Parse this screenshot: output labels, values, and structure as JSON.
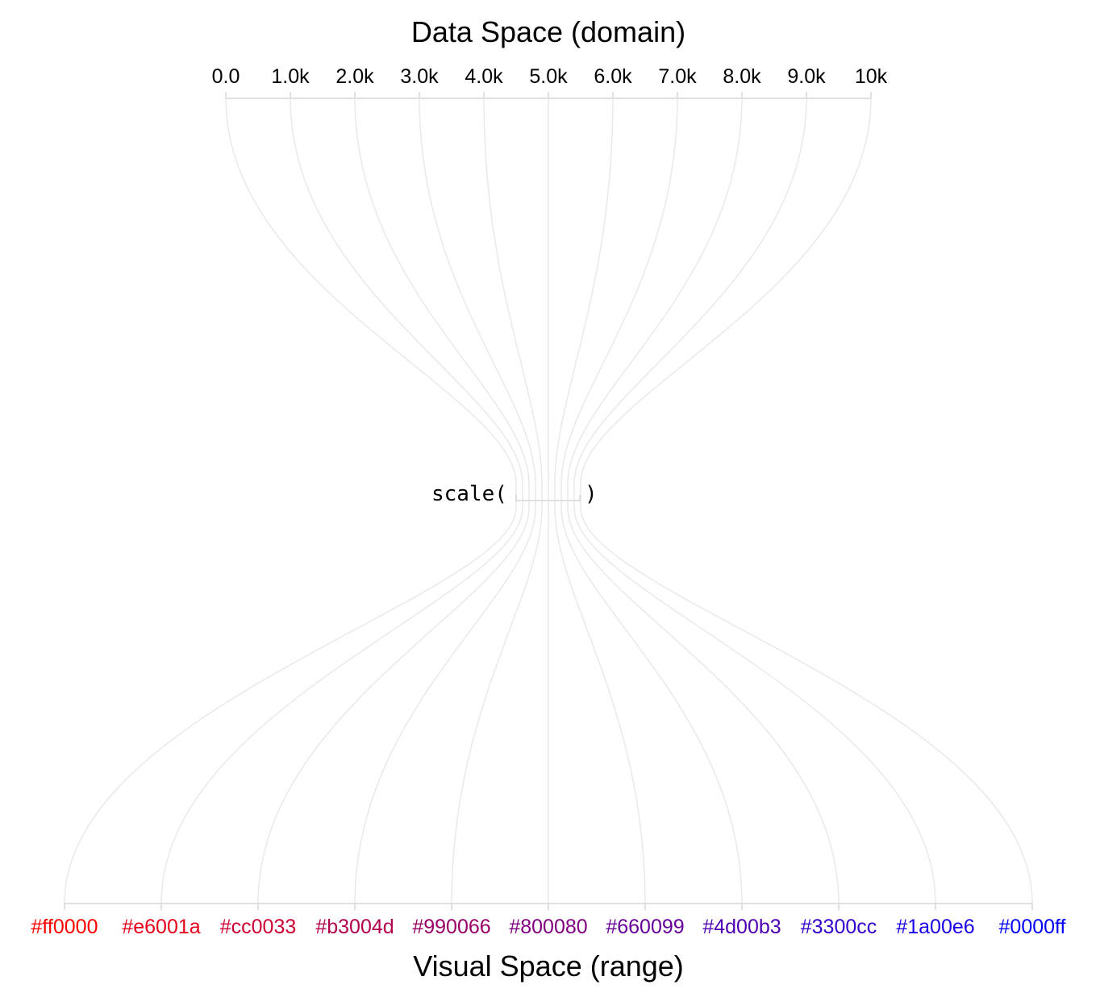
{
  "diagram": {
    "domain_title": "Data Space (domain)",
    "range_title": "Visual Space (range)",
    "scale_open": "scale(",
    "scale_close": ")",
    "domain_ticks": [
      "0.0",
      "1.0k",
      "2.0k",
      "3.0k",
      "4.0k",
      "5.0k",
      "6.0k",
      "7.0k",
      "8.0k",
      "9.0k",
      "10k"
    ],
    "range_ticks": [
      "#ff0000",
      "#e6001a",
      "#cc0033",
      "#b3004d",
      "#990066",
      "#800080",
      "#660099",
      "#4d00b3",
      "#3300cc",
      "#1a00e6",
      "#0000ff"
    ],
    "colors": {
      "axis": "#d6d6d6",
      "mapping_line": "#e9e9e9"
    }
  }
}
